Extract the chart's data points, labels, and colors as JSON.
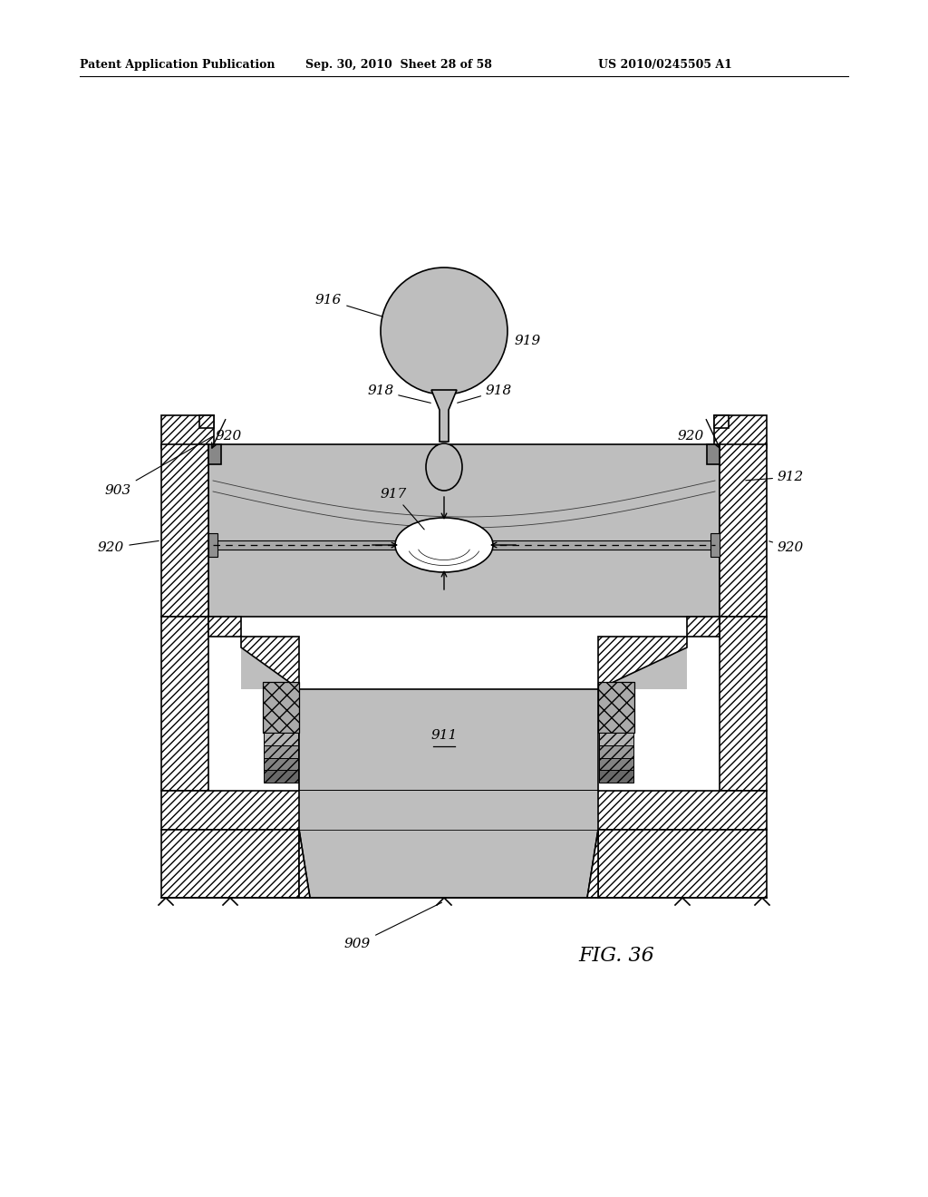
{
  "header_left": "Patent Application Publication",
  "header_mid": "Sep. 30, 2010  Sheet 28 of 58",
  "header_right": "US 2010/0245505 A1",
  "fig_label": "FIG. 36",
  "bg_color": "#ffffff",
  "line_color": "#000000",
  "stipple_color": "#c0c0c0",
  "hatch_color": "#888888"
}
